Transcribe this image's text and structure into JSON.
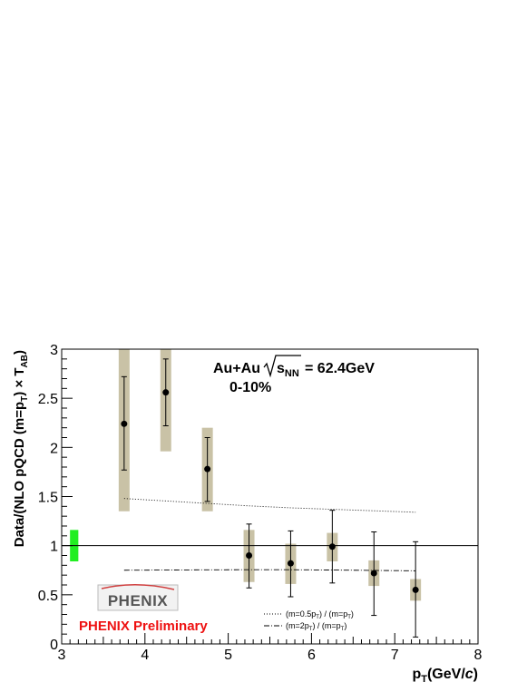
{
  "chart_data": {
    "type": "scatter",
    "title": "",
    "xlabel": {
      "main": "p",
      "sub": "T",
      "rest": "(GeV/",
      "italic": "c",
      "close": ")"
    },
    "ylabel": {
      "pre": "Data/(NLO pQCD (m=p",
      "sub1": "T",
      "mid": ") × T",
      "sub2": "AB",
      "close": ")"
    },
    "xlim": [
      3,
      8
    ],
    "ylim": [
      0,
      3
    ],
    "x_ticks": [
      "3",
      "4",
      "5",
      "6",
      "7",
      "8"
    ],
    "y_ticks": [
      "0",
      "0.5",
      "1",
      "1.5",
      "2",
      "2.5",
      "3"
    ],
    "x_tick_values": [
      3,
      4,
      5,
      6,
      7,
      8
    ],
    "y_tick_values": [
      0,
      0.5,
      1,
      1.5,
      2,
      2.5,
      3
    ],
    "reference_line_y": 1,
    "points": [
      {
        "x": 3.75,
        "y": 2.24,
        "stat_err": [
          1.77,
          2.72
        ],
        "sys_band": [
          1.35,
          3.0
        ]
      },
      {
        "x": 4.25,
        "y": 2.56,
        "stat_err": [
          2.22,
          2.9
        ],
        "sys_band": [
          1.96,
          3.0
        ]
      },
      {
        "x": 4.75,
        "y": 1.78,
        "stat_err": [
          1.45,
          2.1
        ],
        "sys_band": [
          1.35,
          2.2
        ]
      },
      {
        "x": 5.25,
        "y": 0.9,
        "stat_err": [
          0.57,
          1.22
        ],
        "sys_band": [
          0.63,
          1.16
        ]
      },
      {
        "x": 5.75,
        "y": 0.82,
        "stat_err": [
          0.48,
          1.15
        ],
        "sys_band": [
          0.61,
          1.02
        ]
      },
      {
        "x": 6.25,
        "y": 0.99,
        "stat_err": [
          0.62,
          1.36
        ],
        "sys_band": [
          0.84,
          1.13
        ]
      },
      {
        "x": 6.75,
        "y": 0.72,
        "stat_err": [
          0.29,
          1.14
        ],
        "sys_band": [
          0.59,
          0.85
        ]
      },
      {
        "x": 7.25,
        "y": 0.55,
        "stat_err": [
          0.07,
          1.04
        ],
        "sys_band": [
          0.44,
          0.66
        ]
      }
    ],
    "norm_box": {
      "x_range": [
        3.1,
        3.2
      ],
      "y_range": [
        0.84,
        1.16
      ],
      "color": "#22ee22"
    },
    "band_color": "#c9c2a6",
    "curves": [
      {
        "name_pre": "(m=0.5p",
        "name_sub": "T",
        "name_post": ") / (m=p",
        "name_sub2": "T",
        "name_close": ")",
        "style": "dotted",
        "x": [
          3.75,
          4.25,
          4.75,
          5.25,
          5.75,
          6.25,
          6.75,
          7.25
        ],
        "y": [
          1.48,
          1.455,
          1.43,
          1.405,
          1.385,
          1.37,
          1.355,
          1.34
        ]
      },
      {
        "name_pre": "(m=2p",
        "name_sub": "T",
        "name_post": ") / (m=p",
        "name_sub2": "T",
        "name_close": ")",
        "style": "dashdot",
        "x": [
          3.75,
          4.25,
          4.75,
          5.25,
          5.75,
          6.25,
          6.75,
          7.25
        ],
        "y": [
          0.75,
          0.752,
          0.754,
          0.755,
          0.755,
          0.752,
          0.748,
          0.744
        ]
      }
    ],
    "annotations": {
      "system": "Au+Au",
      "sqrt_label": "s",
      "sqrt_sub": "NN",
      "energy": "= 62.4GeV",
      "centrality": "0-10%",
      "preliminary": "PHENIX Preliminary",
      "logo_text": "PHENIX"
    }
  }
}
